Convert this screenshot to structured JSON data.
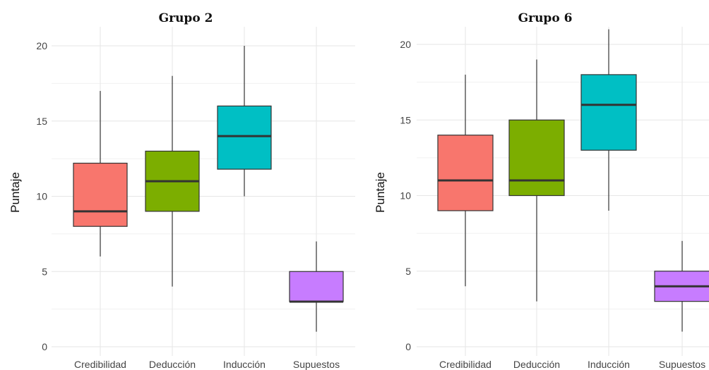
{
  "chart_data": [
    {
      "type": "box",
      "title": "Grupo 2",
      "xlabel": "",
      "ylabel": "Puntaje",
      "ylim": [
        0,
        20
      ],
      "yticks": [
        0,
        5,
        10,
        15,
        20
      ],
      "grid": true,
      "categories": [
        "Credibilidad",
        "Deducción",
        "Inducción",
        "Supuestos"
      ],
      "colors": [
        "#F8766D",
        "#7CAE00",
        "#00BFC4",
        "#C77CFF"
      ],
      "boxes": [
        {
          "category": "Credibilidad",
          "min": 6,
          "q1": 8,
          "median": 9,
          "q3": 12.2,
          "max": 17
        },
        {
          "category": "Deducción",
          "min": 4,
          "q1": 9,
          "median": 11,
          "q3": 13,
          "max": 18
        },
        {
          "category": "Inducción",
          "min": 10,
          "q1": 11.8,
          "median": 14,
          "q3": 16,
          "max": 20
        },
        {
          "category": "Supuestos",
          "min": 1,
          "q1": 3,
          "median": 3,
          "q3": 5,
          "max": 7
        }
      ]
    },
    {
      "type": "box",
      "title": "Grupo 6",
      "xlabel": "",
      "ylabel": "Puntaje",
      "ylim": [
        0,
        20
      ],
      "yticks": [
        0,
        5,
        10,
        15,
        20
      ],
      "grid": true,
      "categories": [
        "Credibilidad",
        "Deducción",
        "Inducción",
        "Supuestos"
      ],
      "colors": [
        "#F8766D",
        "#7CAE00",
        "#00BFC4",
        "#C77CFF"
      ],
      "boxes": [
        {
          "category": "Credibilidad",
          "min": 4,
          "q1": 9,
          "median": 11,
          "q3": 14,
          "max": 18
        },
        {
          "category": "Deducción",
          "min": 3,
          "q1": 10,
          "median": 11,
          "q3": 15,
          "max": 19
        },
        {
          "category": "Inducción",
          "min": 9,
          "q1": 13,
          "median": 16,
          "q3": 18,
          "max": 21
        },
        {
          "category": "Supuestos",
          "min": 1,
          "q1": 3,
          "median": 4,
          "q3": 5,
          "max": 7
        }
      ]
    }
  ]
}
